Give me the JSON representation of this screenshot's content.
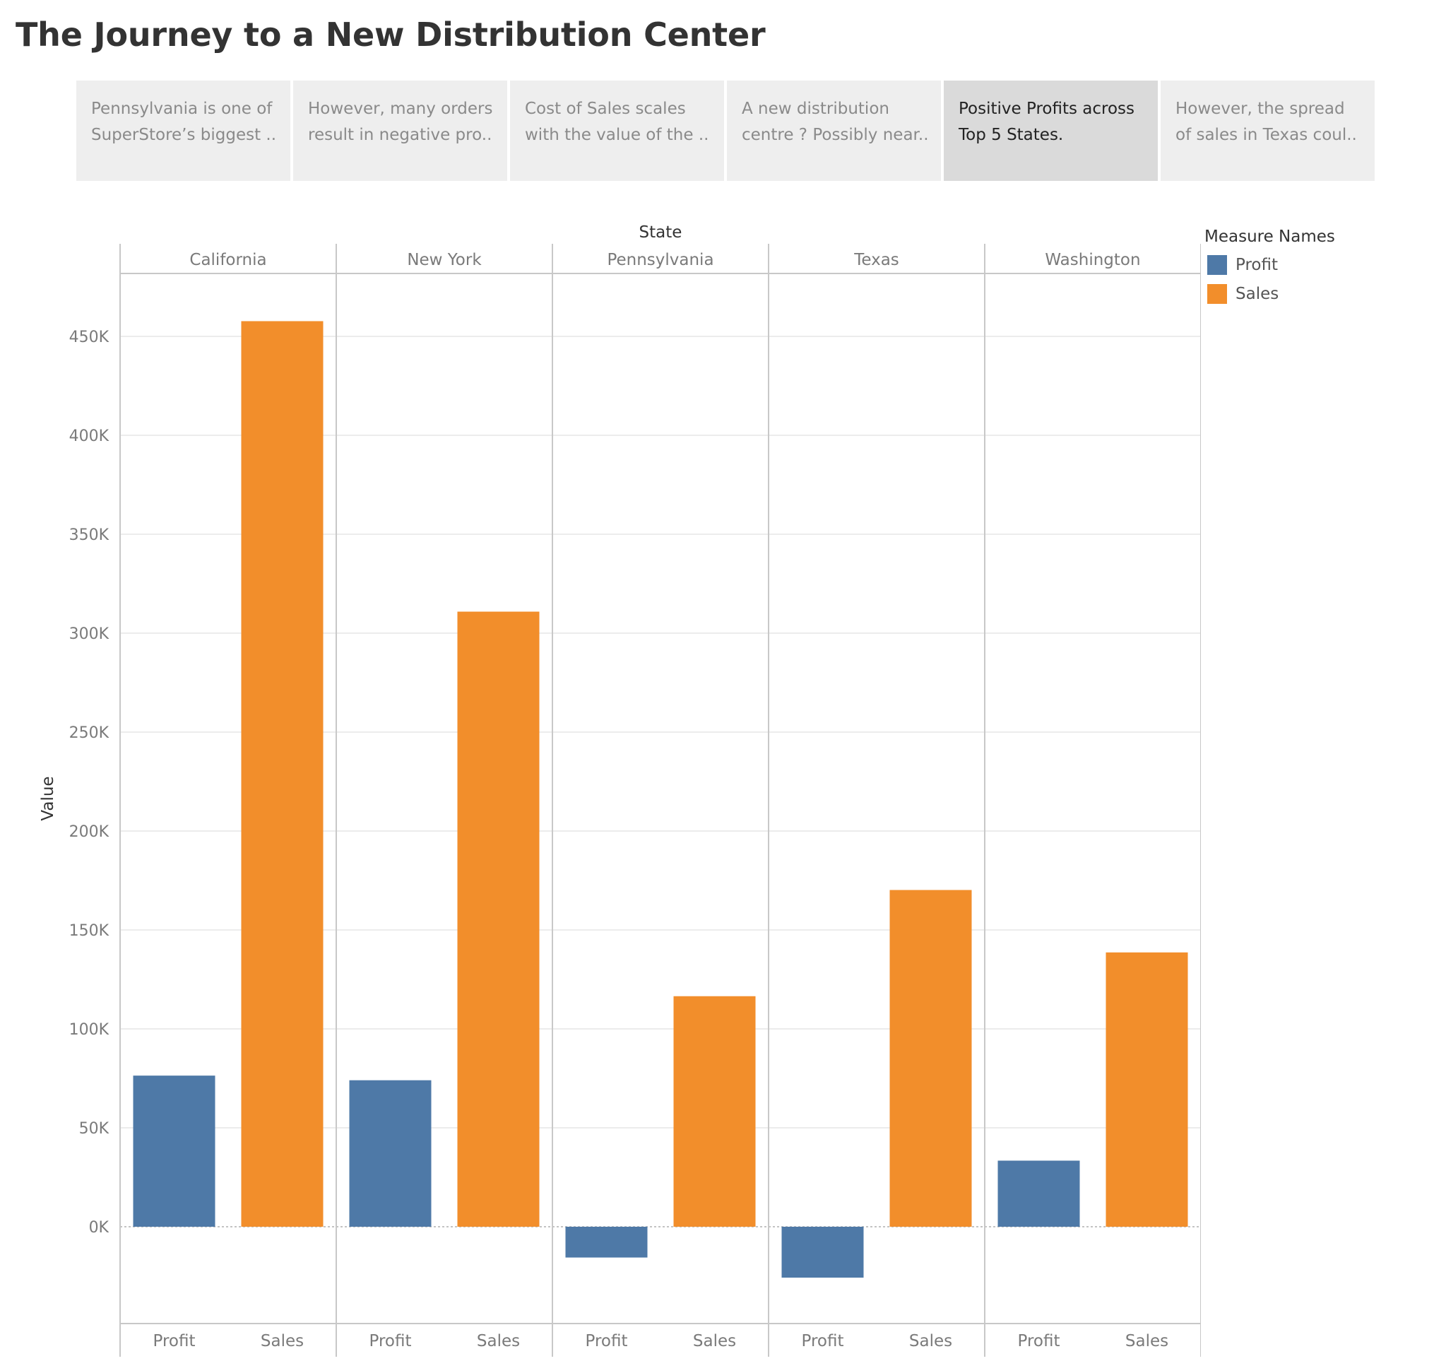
{
  "title": "The Journey to a New Distribution Center",
  "story_points": [
    {
      "text": "Pennsylvania is one of SuperStore’s biggest ..",
      "active": false
    },
    {
      "text": "However, many orders result in negative pro..",
      "active": false
    },
    {
      "text": "Cost of Sales scales with the value of the ..",
      "active": false
    },
    {
      "text": "A new distribution centre ? Possibly near..",
      "active": false
    },
    {
      "text": "Positive Profits across Top 5 States.",
      "active": true
    },
    {
      "text": "However, the spread of sales in Texas coul..",
      "active": false
    }
  ],
  "legend": {
    "title": "Measure Names",
    "items": [
      {
        "label": "Profit",
        "color": "#4e79a7"
      },
      {
        "label": "Sales",
        "color": "#f28e2b"
      }
    ]
  },
  "chart_data": {
    "type": "bar",
    "column_header": "State",
    "ylabel": "Value",
    "ylim": [
      -50000,
      480000
    ],
    "yticks": [
      0,
      50000,
      100000,
      150000,
      200000,
      250000,
      300000,
      350000,
      400000,
      450000
    ],
    "ytick_labels": [
      "0K",
      "50K",
      "100K",
      "150K",
      "200K",
      "250K",
      "300K",
      "350K",
      "400K",
      "450K"
    ],
    "grid": true,
    "legend_position": "top-right",
    "categories": [
      "California",
      "New York",
      "Pennsylvania",
      "Texas",
      "Washington"
    ],
    "measures": [
      "Profit",
      "Sales"
    ],
    "series": [
      {
        "name": "Profit",
        "color": "#4e79a7",
        "values": [
          76381,
          74039,
          -15560,
          -25729,
          33403
        ]
      },
      {
        "name": "Sales",
        "color": "#f28e2b",
        "values": [
          457688,
          310876,
          116512,
          170188,
          138641
        ]
      }
    ]
  }
}
